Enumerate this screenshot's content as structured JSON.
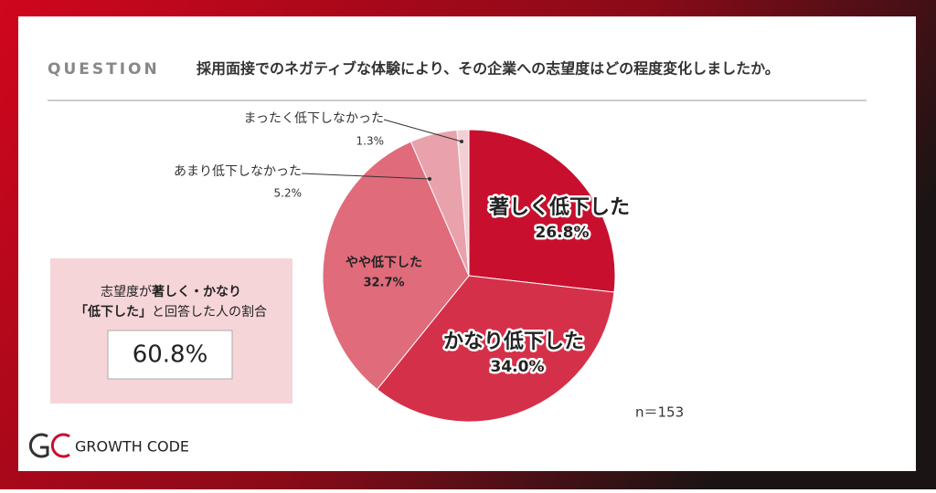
{
  "header": {
    "label": "QUESTION",
    "question": "採用面接でのネガティブな体験により、その企業への志望度はどの程度変化しましたか。"
  },
  "chart_data": {
    "type": "pie",
    "categories": [
      "著しく低下した",
      "かなり低下した",
      "やや低下した",
      "あまり低下しなかった",
      "まったく低下しなかった"
    ],
    "values": [
      26.8,
      34.0,
      32.7,
      5.2,
      1.3
    ],
    "value_labels": [
      "26.8%",
      "34.0%",
      "32.7%",
      "5.2%",
      "1.3%"
    ],
    "colors": [
      "#c8102e",
      "#d5304a",
      "#e06b7b",
      "#e9a2ab",
      "#f3cfd3"
    ]
  },
  "summary": {
    "line1": [
      "志望度が",
      "著しく・かなり"
    ],
    "line2": [
      "「低下した」",
      "と回答した人の割合"
    ],
    "value": "60.8%"
  },
  "sample": "n＝153",
  "logo": "GROWTH CODE"
}
